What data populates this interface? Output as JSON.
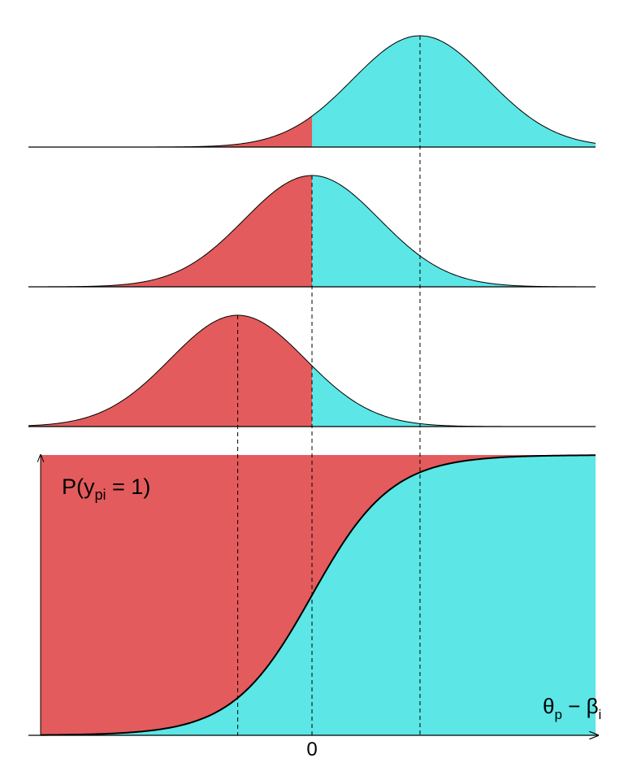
{
  "diagram": {
    "colors": {
      "below_zero": "#E35B5C",
      "above_zero": "#5CE6E6",
      "outline": "#000000",
      "guide": "#000000"
    },
    "x_range": [
      -4.2,
      4.2
    ],
    "threshold": 0,
    "density_panels": [
      {
        "mean": 1.6,
        "sd": 1.0
      },
      {
        "mean": 0.0,
        "sd": 1.0
      },
      {
        "mean": -1.1,
        "sd": 1.0
      }
    ],
    "guide_positions": [
      -1.1,
      0.0,
      1.6
    ],
    "curve": {
      "type": "logistic",
      "slope": 1.7,
      "label_main": "P(y",
      "label_sub": "pi",
      "label_eq": " = 1",
      "label_close": ")"
    },
    "x_axis": {
      "tick_label": "0",
      "label_main": "θ",
      "label_sub_p": "p",
      "label_minus": " − β",
      "label_sub_i": "i"
    }
  }
}
